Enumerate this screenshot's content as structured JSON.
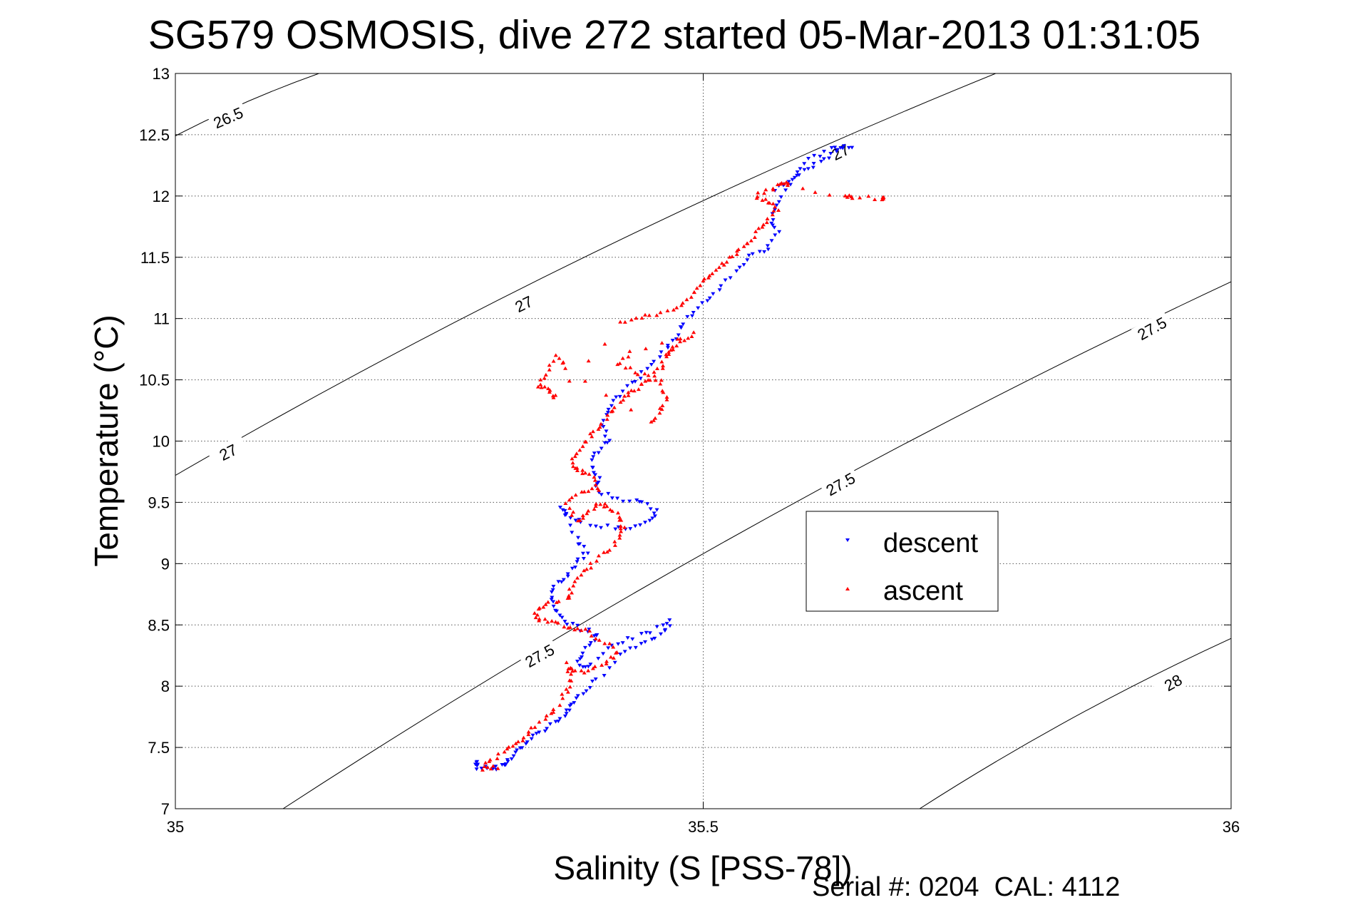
{
  "chart_data": {
    "type": "scatter",
    "title": "SG579 OSMOSIS, dive 272 started 05-Mar-2013 01:31:05",
    "xlabel": "Salinity (S [PSS-78])",
    "ylabel": "Temperature (°C)",
    "xlim": [
      35,
      36
    ],
    "ylim": [
      7,
      13
    ],
    "xticks": [
      "35",
      "35.5",
      "36"
    ],
    "yticks": [
      "7",
      "7.5",
      "8",
      "8.5",
      "9",
      "9.5",
      "10",
      "10.5",
      "11",
      "11.5",
      "12",
      "12.5",
      "13"
    ],
    "grid": true,
    "legend_position": "center-right",
    "footer": "Serial #: 0204  CAL: 4112",
    "colors": {
      "descent": "#0000ff",
      "ascent": "#ff0000",
      "contour": "#000000"
    },
    "density_contours": [
      {
        "label": "26.5",
        "points": [
          [
            35.0,
            12.49
          ],
          [
            35.136,
            13.0
          ]
        ],
        "label_at": [
          [
            35.05,
            12.64
          ]
        ]
      },
      {
        "label": "27",
        "points": [
          [
            35.0,
            9.72
          ],
          [
            35.777,
            13.0
          ]
        ],
        "label_at": [
          [
            35.05,
            9.91
          ],
          [
            35.33,
            11.12
          ],
          [
            35.63,
            12.36
          ]
        ]
      },
      {
        "label": "27.5",
        "points": [
          [
            35.102,
            7.0
          ],
          [
            36.0,
            11.3
          ]
        ],
        "label_at": [
          [
            35.345,
            8.25
          ],
          [
            35.63,
            9.65
          ],
          [
            35.925,
            10.92
          ]
        ]
      },
      {
        "label": "28",
        "points": [
          [
            35.705,
            7.0
          ],
          [
            36.0,
            8.39
          ]
        ],
        "label_at": [
          [
            35.945,
            8.03
          ]
        ]
      }
    ],
    "series": [
      {
        "name": "descent",
        "marker": "triangle-down",
        "points": [
          [
            35.57,
            12.06
          ],
          [
            35.58,
            12.12
          ],
          [
            35.595,
            12.2
          ],
          [
            35.61,
            12.29
          ],
          [
            35.625,
            12.36
          ],
          [
            35.64,
            12.41
          ],
          [
            35.62,
            12.38
          ],
          [
            35.6,
            12.3
          ],
          [
            35.585,
            12.15
          ],
          [
            35.57,
            11.95
          ],
          [
            35.565,
            11.82
          ],
          [
            35.57,
            11.7
          ],
          [
            35.56,
            11.58
          ],
          [
            35.545,
            11.5
          ],
          [
            35.53,
            11.38
          ],
          [
            35.515,
            11.25
          ],
          [
            35.5,
            11.12
          ],
          [
            35.485,
            11.0
          ],
          [
            35.475,
            10.88
          ],
          [
            35.465,
            10.76
          ],
          [
            35.45,
            10.62
          ],
          [
            35.435,
            10.5
          ],
          [
            35.42,
            10.38
          ],
          [
            35.41,
            10.26
          ],
          [
            35.405,
            10.14
          ],
          [
            35.41,
            10.02
          ],
          [
            35.4,
            9.92
          ],
          [
            35.395,
            9.8
          ],
          [
            35.4,
            9.7
          ],
          [
            35.4,
            9.6
          ],
          [
            35.42,
            9.52
          ],
          [
            35.44,
            9.5
          ],
          [
            35.455,
            9.45
          ],
          [
            35.45,
            9.35
          ],
          [
            35.43,
            9.3
          ],
          [
            35.41,
            9.3
          ],
          [
            35.385,
            9.33
          ],
          [
            35.37,
            9.4
          ],
          [
            35.365,
            9.45
          ],
          [
            35.38,
            9.2
          ],
          [
            35.39,
            9.1
          ],
          [
            35.38,
            9.0
          ],
          [
            35.37,
            8.9
          ],
          [
            35.36,
            8.82
          ],
          [
            35.355,
            8.7
          ],
          [
            35.36,
            8.6
          ],
          [
            35.37,
            8.52
          ],
          [
            35.39,
            8.45
          ],
          [
            35.4,
            8.4
          ],
          [
            35.39,
            8.3
          ],
          [
            35.38,
            8.2
          ],
          [
            35.39,
            8.15
          ],
          [
            35.41,
            8.3
          ],
          [
            35.43,
            8.38
          ],
          [
            35.45,
            8.45
          ],
          [
            35.47,
            8.53
          ],
          [
            35.46,
            8.42
          ],
          [
            35.44,
            8.36
          ],
          [
            35.42,
            8.25
          ],
          [
            35.4,
            8.05
          ],
          [
            35.385,
            7.95
          ],
          [
            35.375,
            7.85
          ],
          [
            35.37,
            7.78
          ],
          [
            35.36,
            7.7
          ],
          [
            35.345,
            7.62
          ],
          [
            35.335,
            7.55
          ],
          [
            35.325,
            7.47
          ],
          [
            35.315,
            7.4
          ],
          [
            35.31,
            7.35
          ],
          [
            35.3,
            7.33
          ],
          [
            35.285,
            7.34
          ],
          [
            35.285,
            7.37
          ]
        ]
      },
      {
        "name": "ascent",
        "marker": "triangle-up",
        "points": [
          [
            35.305,
            7.33
          ],
          [
            35.29,
            7.33
          ],
          [
            35.3,
            7.4
          ],
          [
            35.315,
            7.48
          ],
          [
            35.325,
            7.55
          ],
          [
            35.335,
            7.63
          ],
          [
            35.35,
            7.72
          ],
          [
            35.36,
            7.82
          ],
          [
            35.37,
            7.95
          ],
          [
            35.375,
            8.05
          ],
          [
            35.37,
            8.18
          ],
          [
            35.38,
            8.12
          ],
          [
            35.395,
            8.13
          ],
          [
            35.41,
            8.2
          ],
          [
            35.42,
            8.28
          ],
          [
            35.4,
            8.38
          ],
          [
            35.39,
            8.45
          ],
          [
            35.375,
            8.47
          ],
          [
            35.36,
            8.52
          ],
          [
            35.345,
            8.55
          ],
          [
            35.34,
            8.6
          ],
          [
            35.35,
            8.67
          ],
          [
            35.37,
            8.7
          ],
          [
            35.375,
            8.8
          ],
          [
            35.385,
            8.9
          ],
          [
            35.395,
            9.0
          ],
          [
            35.41,
            9.1
          ],
          [
            35.42,
            9.2
          ],
          [
            35.425,
            9.3
          ],
          [
            35.42,
            9.38
          ],
          [
            35.41,
            9.45
          ],
          [
            35.4,
            9.5
          ],
          [
            35.39,
            9.4
          ],
          [
            35.38,
            9.35
          ],
          [
            35.37,
            9.5
          ],
          [
            35.385,
            9.58
          ],
          [
            35.4,
            9.6
          ],
          [
            35.395,
            9.7
          ],
          [
            35.385,
            9.75
          ],
          [
            35.375,
            9.8
          ],
          [
            35.38,
            9.9
          ],
          [
            35.39,
            10.0
          ],
          [
            35.4,
            10.1
          ],
          [
            35.41,
            10.2
          ],
          [
            35.42,
            10.3
          ],
          [
            35.43,
            10.4
          ],
          [
            35.44,
            10.45
          ],
          [
            35.45,
            10.5
          ],
          [
            35.46,
            10.6
          ],
          [
            35.465,
            10.7
          ],
          [
            35.47,
            10.75
          ],
          [
            35.48,
            10.82
          ],
          [
            35.49,
            10.88
          ],
          [
            35.43,
            10.72
          ],
          [
            35.42,
            10.62
          ],
          [
            35.44,
            10.55
          ],
          [
            35.46,
            10.5
          ],
          [
            35.465,
            10.35
          ],
          [
            35.46,
            10.25
          ],
          [
            35.45,
            10.15
          ],
          [
            35.37,
            10.6
          ],
          [
            35.36,
            10.7
          ],
          [
            35.35,
            10.55
          ],
          [
            35.345,
            10.45
          ],
          [
            35.355,
            10.4
          ],
          [
            35.36,
            10.35
          ],
          [
            35.42,
            10.96
          ],
          [
            35.44,
            11.0
          ],
          [
            35.46,
            11.05
          ],
          [
            35.48,
            11.1
          ],
          [
            35.49,
            11.2
          ],
          [
            35.5,
            11.3
          ],
          [
            35.51,
            11.38
          ],
          [
            35.52,
            11.45
          ],
          [
            35.53,
            11.52
          ],
          [
            35.54,
            11.6
          ],
          [
            35.55,
            11.7
          ],
          [
            35.56,
            11.8
          ],
          [
            35.57,
            11.9
          ],
          [
            35.56,
            11.95
          ],
          [
            35.55,
            12.0
          ],
          [
            35.565,
            12.05
          ],
          [
            35.575,
            12.1
          ],
          [
            35.58,
            12.1
          ],
          [
            35.635,
            11.99
          ],
          [
            35.64,
            11.99
          ],
          [
            35.67,
            11.98
          ]
        ]
      }
    ]
  }
}
